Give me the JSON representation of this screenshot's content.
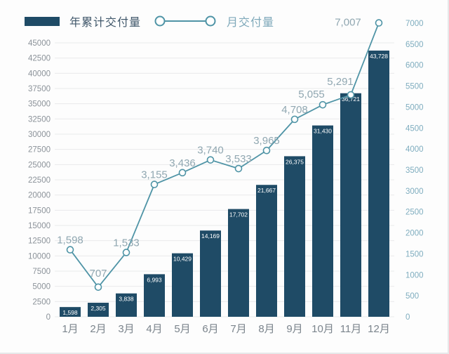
{
  "colors": {
    "bar": "#1f4b66",
    "line": "#4f94a6",
    "grid": "#e9eaec",
    "background": "#fdfdfd",
    "left_axis_text": "#8b9299",
    "right_axis_text": "#7fadbf",
    "month_text": "#7b848c",
    "point_label_text": "#90a7b1",
    "bar_value_text": "#ffffff",
    "legend_bar_text": "#41586b",
    "legend_line_text": "#7fa9ba"
  },
  "chart_data": {
    "type": "combo-bar-line",
    "categories": [
      "1月",
      "2月",
      "3月",
      "4月",
      "5月",
      "6月",
      "7月",
      "8月",
      "9月",
      "10月",
      "11月",
      "12月"
    ],
    "series": [
      {
        "name": "年累计交付量",
        "type": "bar",
        "axis": "left",
        "values": [
          1598,
          2305,
          3838,
          6993,
          10429,
          14169,
          17702,
          21667,
          26375,
          31430,
          36721,
          43728
        ],
        "labels": [
          "1,598",
          "2,305",
          "3,838",
          "6,993",
          "10,429",
          "14,169",
          "17,702",
          "21,667",
          "26,375",
          "31,430",
          "36,721",
          "43,728"
        ]
      },
      {
        "name": "月交付量",
        "type": "line",
        "axis": "right",
        "values": [
          1598,
          707,
          1533,
          3155,
          3436,
          3740,
          3533,
          3965,
          4708,
          5055,
          5291,
          7007
        ],
        "labels": [
          "1,598",
          "707",
          "1,533",
          "3,155",
          "3,436",
          "3,740",
          "3,533",
          "3,965",
          "4,708",
          "5,055",
          "5,291",
          "7,007"
        ]
      }
    ],
    "left_axis": {
      "min": 0,
      "max": 45000,
      "step": 2500,
      "ticks": [
        "0",
        "2500",
        "5000",
        "7500",
        "10000",
        "12500",
        "15000",
        "17500",
        "20000",
        "22500",
        "25000",
        "27500",
        "30000",
        "32500",
        "35000",
        "37500",
        "40000",
        "42500",
        "45000"
      ]
    },
    "right_axis": {
      "min": 0,
      "max": 7000,
      "step": 500,
      "ticks": [
        "0",
        "500",
        "1000",
        "1500",
        "2000",
        "2500",
        "3000",
        "3500",
        "4000",
        "4500",
        "5000",
        "5500",
        "6000",
        "6500",
        "7000"
      ]
    },
    "grid": true,
    "legend_position": "top-left"
  }
}
